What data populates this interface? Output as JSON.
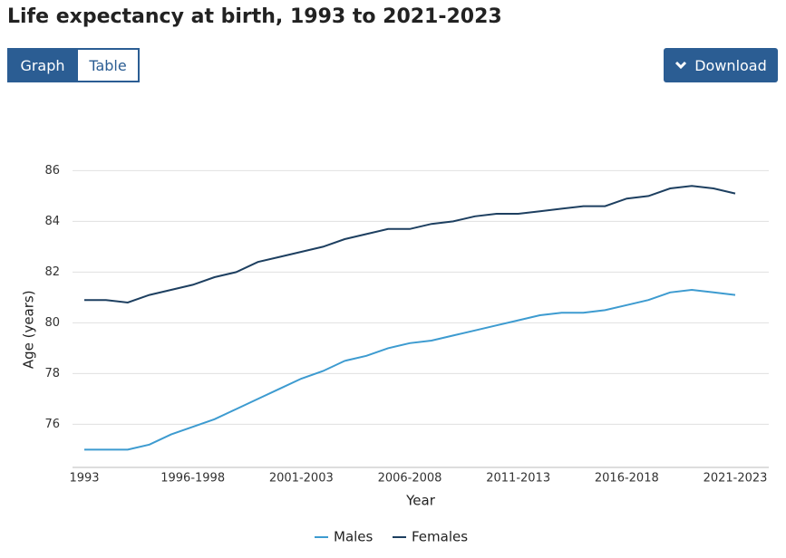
{
  "ui": {
    "tabs": [
      "Graph",
      "Table"
    ],
    "active_tab": 0,
    "download": "Download"
  },
  "chart_data": {
    "type": "line",
    "title": "Life expectancy at birth, 1993 to 2021-2023",
    "x_label": "Year",
    "y_label": "Age (years)",
    "categories": [
      "1993",
      null,
      null,
      null,
      null,
      "1996-1998",
      null,
      null,
      null,
      null,
      "2001-2003",
      null,
      null,
      null,
      null,
      "2006-2008",
      null,
      null,
      null,
      null,
      "2011-2013",
      null,
      null,
      null,
      null,
      "2016-2018",
      null,
      null,
      null,
      null,
      "2021-2023"
    ],
    "series": [
      {
        "name": "Males",
        "color": "#3d9bd0",
        "values": [
          75.0,
          75.0,
          75.0,
          75.2,
          75.6,
          75.9,
          76.2,
          76.6,
          77.0,
          77.4,
          77.8,
          78.1,
          78.5,
          78.7,
          79.0,
          79.2,
          79.3,
          79.5,
          79.7,
          79.9,
          80.1,
          80.3,
          80.4,
          80.4,
          80.5,
          80.7,
          80.9,
          81.2,
          81.3,
          81.2,
          81.1
        ]
      },
      {
        "name": "Females",
        "color": "#1d3f60",
        "values": [
          80.9,
          80.9,
          80.8,
          81.1,
          81.3,
          81.5,
          81.8,
          82.0,
          82.4,
          82.6,
          82.8,
          83.0,
          83.3,
          83.5,
          83.7,
          83.7,
          83.9,
          84.0,
          84.2,
          84.3,
          84.3,
          84.4,
          84.5,
          84.6,
          84.6,
          84.9,
          85.0,
          85.3,
          85.4,
          85.3,
          85.1
        ]
      }
    ],
    "ylim": [
      74.3,
      86.6
    ],
    "yticks": [
      76,
      78,
      80,
      82,
      84,
      86
    ],
    "grid": true,
    "legend": "bottom"
  }
}
